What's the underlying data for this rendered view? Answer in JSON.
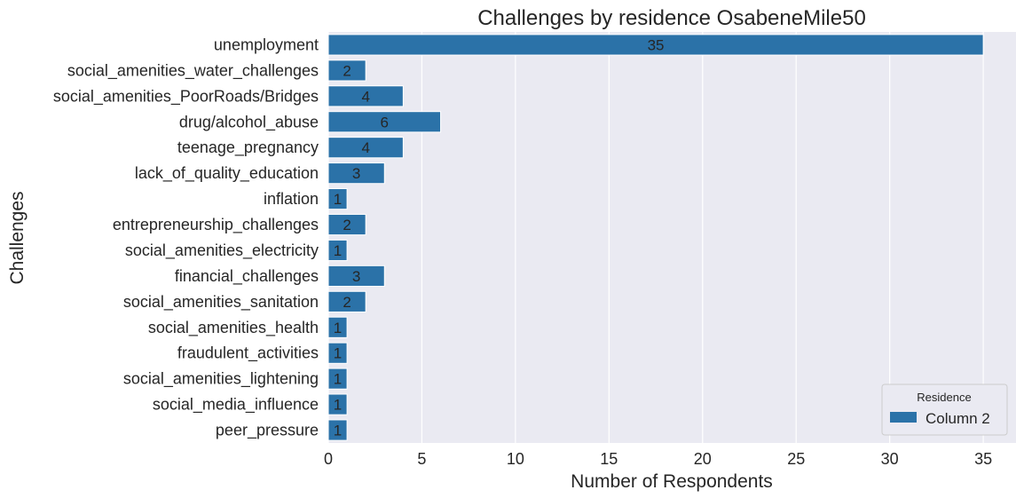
{
  "chart_data": {
    "type": "bar",
    "orientation": "horizontal",
    "title": "Challenges by residence OsabeneMile50",
    "xlabel": "Number of Respondents",
    "ylabel": "Challenges",
    "xlim": [
      0,
      36.75
    ],
    "xticks": [
      0,
      5,
      10,
      15,
      20,
      25,
      30,
      35
    ],
    "grid": true,
    "legend": {
      "title": "Residence",
      "placement": "bottom-right",
      "entries": [
        "Column 2"
      ]
    },
    "colors": {
      "bar": "#2b72a8",
      "background": "#eaeaf2",
      "grid": "#ffffff"
    },
    "categories": [
      "unemployment",
      "social_amenities_water_challenges",
      "social_amenities_PoorRoads/Bridges",
      "drug/alcohol_abuse",
      "teenage_pregnancy",
      "lack_of_quality_education",
      "inflation",
      "entrepreneurship_challenges",
      "social_amenities_electricity",
      "financial_challenges",
      "social_amenities_sanitation",
      "social_amenities_health",
      "fraudulent_activities",
      "social_amenities_lightening",
      "social_media_influence",
      "peer_pressure"
    ],
    "series": [
      {
        "name": "Column 2",
        "values": [
          35,
          2,
          4,
          6,
          4,
          3,
          1,
          2,
          1,
          3,
          2,
          1,
          1,
          1,
          1,
          1
        ]
      }
    ]
  }
}
